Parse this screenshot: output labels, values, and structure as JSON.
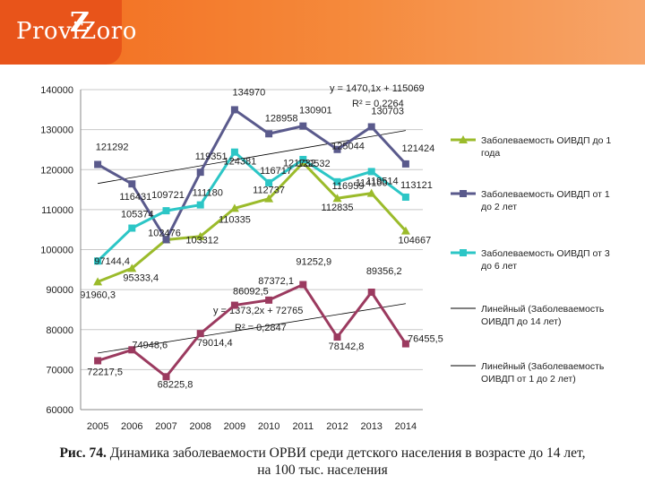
{
  "header": {
    "logo_text": "ProviZoro",
    "logo_mark": "Z"
  },
  "caption": {
    "label": "Рис. 74.",
    "line1": "Динамика заболеваемости ОРВИ среди детского населения в возрасте до 14 лет,",
    "line2": "на 100 тыс. населения"
  },
  "colors": {
    "ovidp_lt1": "#9bbb2b",
    "ovidp_1to2": "#5a5a8c",
    "ovidp_3to6": "#2cc6c6",
    "orvi_lower": "#9b3a5f",
    "trend": "#000000"
  },
  "chart_data": {
    "type": "line",
    "title": "",
    "xlabel": "",
    "ylabel": "",
    "ylim": [
      60000,
      140000
    ],
    "yticks": [
      60000,
      70000,
      80000,
      90000,
      100000,
      110000,
      120000,
      130000,
      140000
    ],
    "ytick_labels": [
      "60000",
      "70000",
      "80000",
      "90000",
      "100000",
      "110000",
      "120000",
      "130000",
      "140000"
    ],
    "categories": [
      "2005",
      "2006",
      "2007",
      "2008",
      "2009",
      "2010",
      "2011",
      "2012",
      "2013",
      "2014"
    ],
    "series": [
      {
        "name": "Заболеваемость ОИВДП до 1 года",
        "values": [
          91960.3,
          95333.4,
          102476,
          103312,
          110335,
          112737,
          121732,
          112835,
          114100,
          104667
        ],
        "labels": [
          "91960,3",
          "95333,4",
          "102476",
          "103312",
          "110335",
          "112737",
          "121732",
          "112835",
          "114100",
          "104667"
        ]
      },
      {
        "name": "Заболеваемость ОИВДП от 1 до 2 лет",
        "values": [
          121292,
          116431,
          102476,
          119351,
          134970,
          128958,
          130901,
          125044,
          130703,
          121424
        ],
        "labels": [
          "121292",
          "116431",
          "",
          "119351",
          "134970",
          "128958",
          "130901",
          "125044",
          "130703",
          "121424"
        ]
      },
      {
        "name": "Заболеваемость ОИВДП от 3 до 6 лет",
        "values": [
          97144.4,
          105374,
          109721,
          111180,
          124381,
          116717,
          122532,
          116959,
          119514,
          113121
        ],
        "labels": [
          "97144,4",
          "105374",
          "109721",
          "111180",
          "124381",
          "116717",
          "122532",
          "116959",
          "119514",
          "113121"
        ]
      },
      {
        "name": "Заболеваемость ОИВДП до 14 лет",
        "values": [
          72217.5,
          74948.6,
          68225.8,
          79014.4,
          86092.5,
          87372.1,
          91252.9,
          78142.8,
          89356.2,
          76455.5
        ],
        "labels": [
          "72217,5",
          "74948,6",
          "68225,8",
          "79014,4",
          "86092,5",
          "87372,1",
          "91252,9",
          "78142,8",
          "89356,2",
          "76455,5"
        ]
      }
    ],
    "trendlines": [
      {
        "name": "Линейный (Заболеваемость ОИВДП до 14 лет)",
        "slope": 1373.2,
        "intercept": 72765,
        "equation": "y = 1373,2x + 72765",
        "r2": "R² = 0,2847"
      },
      {
        "name": "Линейный (Заболеваемость ОИВДП от 1 до 2 лет)",
        "slope": 1470.1,
        "intercept": 115069,
        "equation": "y = 1470,1x + 115069",
        "r2": "R² = 0,2264"
      }
    ],
    "legend_position": "right",
    "legend": [
      "Заболеваемость ОИВДП до 1 года",
      "Заболеваемость ОИВДП от 1 до 2 лет",
      "Заболеваемость ОИВДП от 3 до 6 лет",
      "Линейный (Заболеваемость ОИВДП до 14 лет)",
      "Линейный (Заболеваемость ОИВДП от 1 до 2 лет)"
    ]
  }
}
